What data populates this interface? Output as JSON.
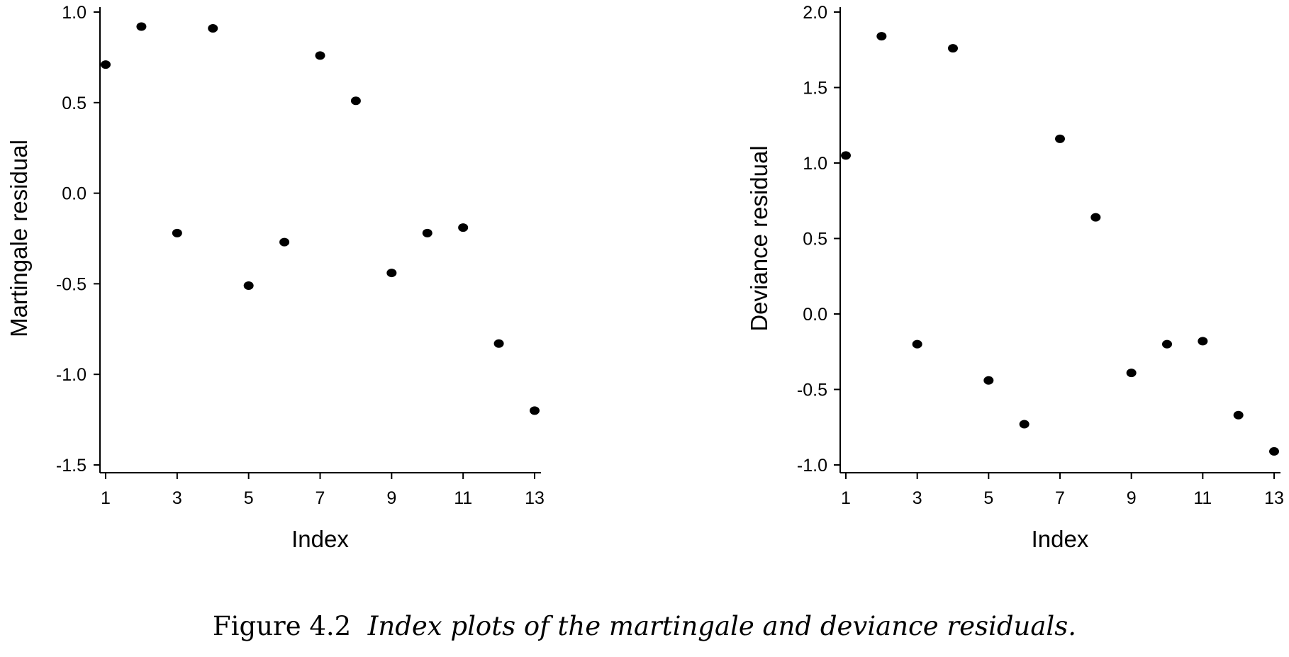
{
  "caption": {
    "label": "Figure 4.2",
    "text": "Index plots of the martingale and deviance residuals."
  },
  "chart_data": [
    {
      "type": "scatter",
      "xlabel": "Index",
      "ylabel": "Martingale residual",
      "x": [
        1,
        2,
        3,
        4,
        5,
        6,
        7,
        8,
        9,
        10,
        11,
        12,
        13
      ],
      "y": [
        0.71,
        0.92,
        -0.22,
        0.91,
        -0.51,
        -0.27,
        0.76,
        0.51,
        -0.44,
        -0.22,
        -0.19,
        -0.83,
        -1.2
      ],
      "xticks": [
        1,
        3,
        5,
        7,
        9,
        11,
        13
      ],
      "yticks": [
        1.0,
        0.5,
        0.0,
        -0.5,
        -1.0,
        -1.5
      ],
      "ytick_labels": [
        "1.0",
        "0.5",
        "0.0",
        "-0.5",
        "-1.0",
        "-1.5"
      ],
      "xlim": [
        1,
        13
      ],
      "ylim": [
        -1.5,
        1.0
      ],
      "grid": false,
      "marker_color": "#000000"
    },
    {
      "type": "scatter",
      "xlabel": "Index",
      "ylabel": "Deviance residual",
      "x": [
        1,
        2,
        3,
        4,
        5,
        6,
        7,
        8,
        9,
        10,
        11,
        12,
        13
      ],
      "y": [
        1.05,
        1.84,
        -0.2,
        1.76,
        -0.44,
        -0.73,
        1.16,
        0.64,
        -0.39,
        -0.2,
        -0.18,
        -0.67,
        -0.91
      ],
      "xticks": [
        1,
        3,
        5,
        7,
        9,
        11,
        13
      ],
      "yticks": [
        2.0,
        1.5,
        1.0,
        0.5,
        0.0,
        -0.5,
        -1.0
      ],
      "ytick_labels": [
        "2.0",
        "1.5",
        "1.0",
        "0.5",
        "0.0",
        "-0.5",
        "-1.0"
      ],
      "xlim": [
        1,
        13
      ],
      "ylim": [
        -1.0,
        2.0
      ],
      "grid": false,
      "marker_color": "#000000"
    }
  ]
}
